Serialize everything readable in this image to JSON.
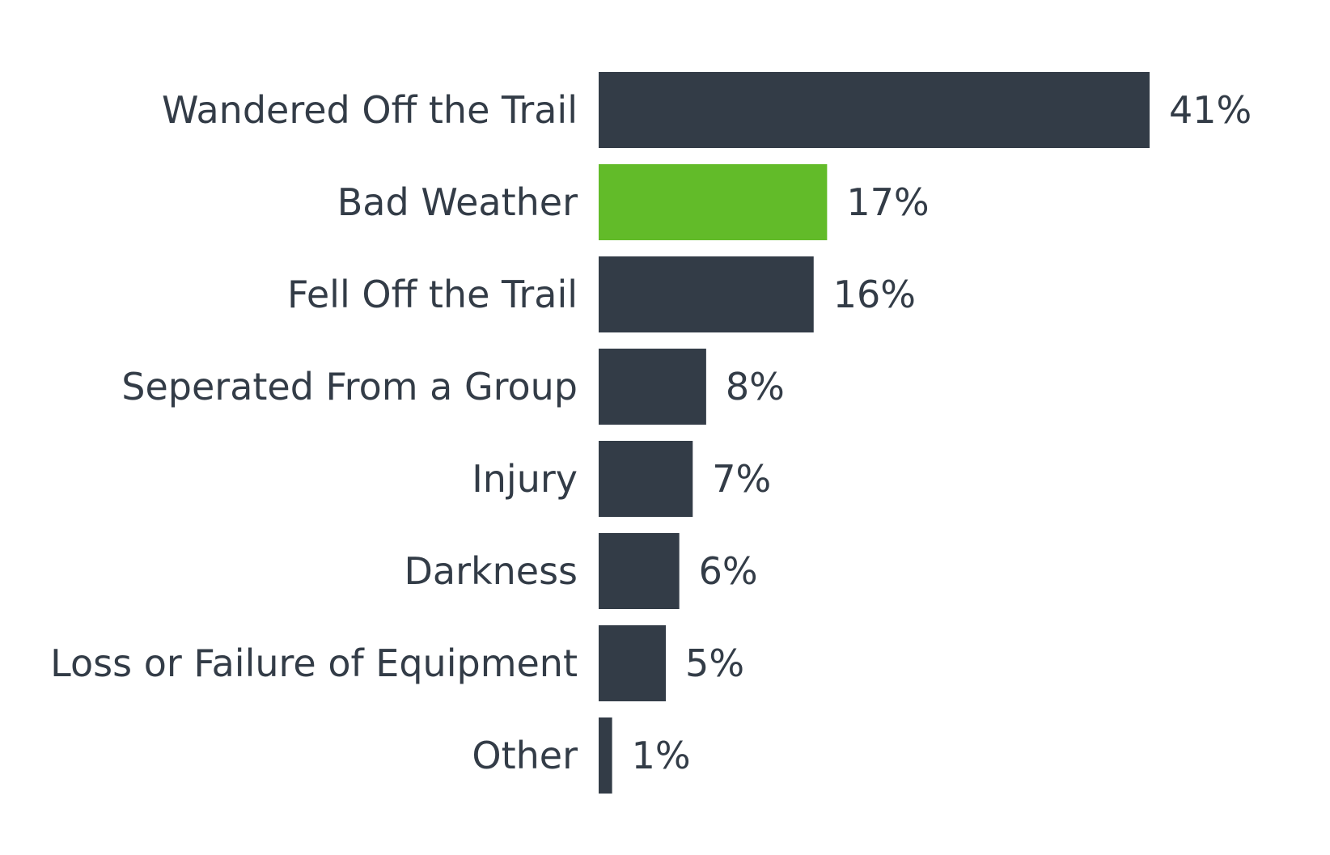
{
  "chart_data": {
    "type": "bar",
    "orientation": "horizontal",
    "title": "",
    "xlabel": "",
    "ylabel": "",
    "categories": [
      "Wandered Off the Trail",
      "Bad Weather",
      "Fell Off the Trail",
      "Seperated From a Group",
      "Injury",
      "Darkness",
      "Loss or Failure of Equipment",
      "Other"
    ],
    "values": [
      41,
      17,
      16,
      8,
      7,
      6,
      5,
      1
    ],
    "value_labels": [
      "41%",
      "17%",
      "16%",
      "8%",
      "7%",
      "6%",
      "5%",
      "1%"
    ],
    "xlim": [
      0,
      41
    ],
    "grid": false,
    "legend": "none",
    "colors": {
      "default_bar": "#333c47",
      "highlight_bar": "#62bb29",
      "text": "#333c47",
      "background": "#ffffff"
    },
    "highlighted_category": "Bad Weather"
  }
}
